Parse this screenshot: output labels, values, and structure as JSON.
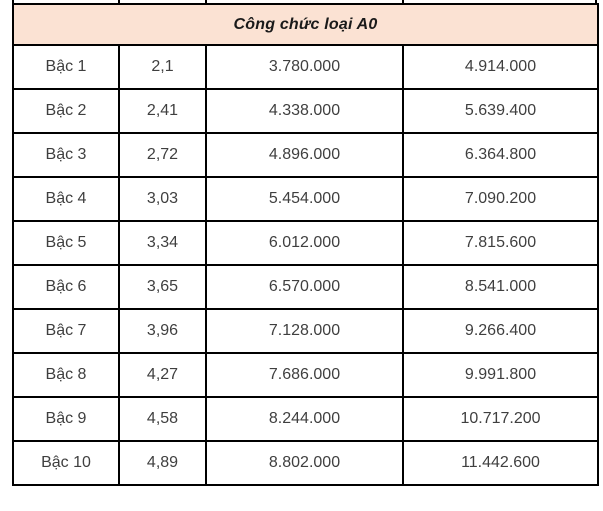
{
  "chart_data": {
    "type": "table",
    "title": "Công chức loại A0",
    "rows": [
      [
        "Bậc 1",
        "2,1",
        "3.780.000",
        "4.914.000"
      ],
      [
        "Bậc 2",
        "2,41",
        "4.338.000",
        "5.639.400"
      ],
      [
        "Bậc 3",
        "2,72",
        "4.896.000",
        "6.364.800"
      ],
      [
        "Bậc 4",
        "3,03",
        "5.454.000",
        "7.090.200"
      ],
      [
        "Bậc 5",
        "3,34",
        "6.012.000",
        "7.815.600"
      ],
      [
        "Bậc 6",
        "3,65",
        "6.570.000",
        "8.541.000"
      ],
      [
        "Bậc 7",
        "3,96",
        "7.128.000",
        "9.266.400"
      ],
      [
        "Bậc 8",
        "4,27",
        "7.686.000",
        "9.991.800"
      ],
      [
        "Bậc 9",
        "4,58",
        "8.244.000",
        "10.717.200"
      ],
      [
        "Bậc 10",
        "4,89",
        "8.802.000",
        "11.442.600"
      ]
    ]
  },
  "colors": {
    "header_bg": "#fbe2d3",
    "border": "#000000",
    "body_text": "#3f3f3f",
    "title_text": "#1a1a1a"
  }
}
